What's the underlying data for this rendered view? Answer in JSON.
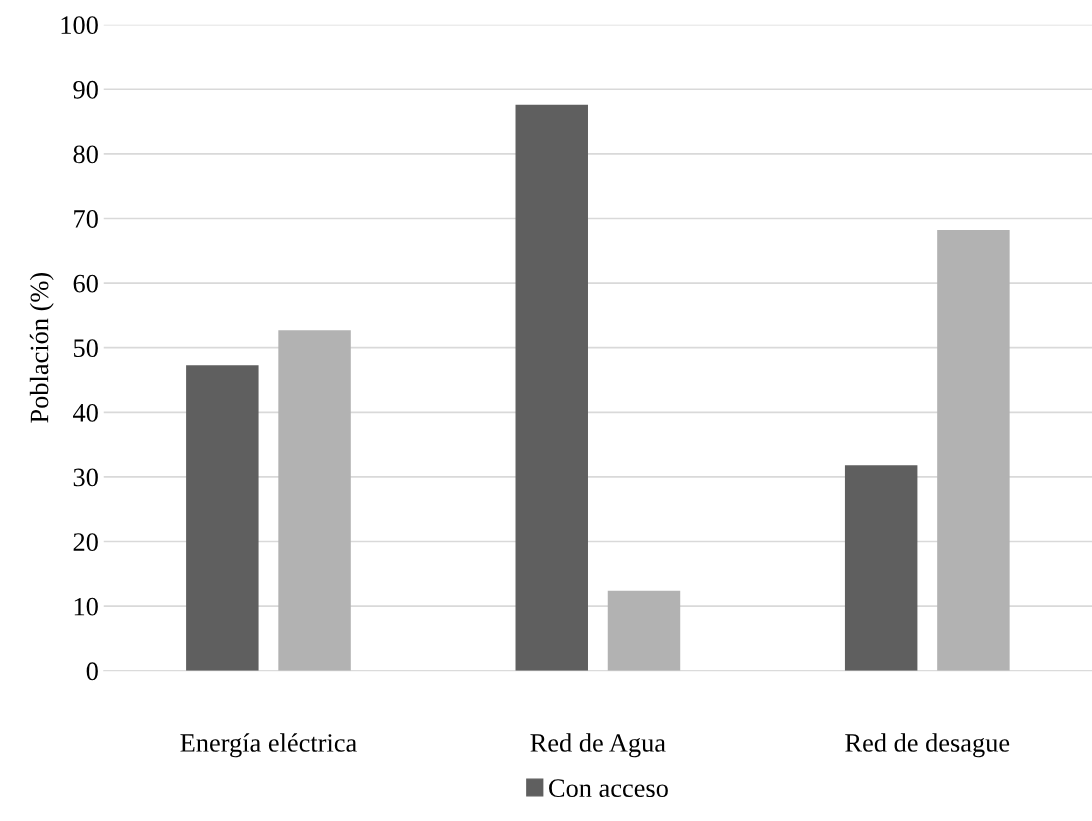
{
  "chart_data": {
    "type": "bar",
    "ylabel": "Población (%)",
    "categories": [
      "Energía eléctrica",
      "Red de Agua",
      "Red de desague"
    ],
    "series": [
      {
        "name": "Con acceso",
        "color": "#5f5f5f",
        "values": [
          47.3,
          87.6,
          31.8
        ]
      },
      {
        "color": "#b2b2b2",
        "values": [
          52.7,
          12.4,
          68.2
        ]
      }
    ],
    "ylim": [
      0,
      100
    ],
    "yticks": [
      0,
      10,
      20,
      30,
      40,
      50,
      60,
      70,
      80,
      90,
      100
    ],
    "grid": "y",
    "legend": "bottom"
  }
}
